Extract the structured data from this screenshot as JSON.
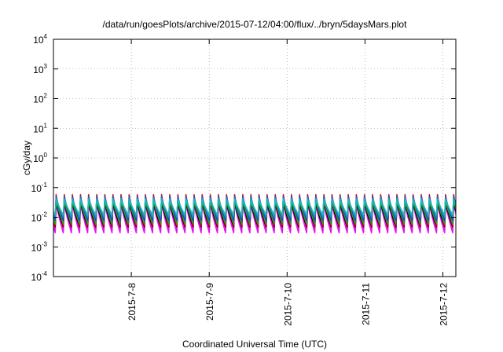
{
  "chart_data": {
    "type": "line",
    "title": "/data/run/goesPlots/archive/2015-07-12/04:00/flux/../bryn/5daysMars.plot",
    "xlabel": "Coordinated Universal Time (UTC)",
    "ylabel": "cGy/day",
    "yscale": "log",
    "ylim": [
      0.0001,
      10000
    ],
    "xlim": [
      "2015-07-07T00:00",
      "2015-07-12T04:00"
    ],
    "x_ticks": [
      {
        "date": "2015-07-08T00:00",
        "label": "2015-7-8"
      },
      {
        "date": "2015-07-09T00:00",
        "label": "2015-7-9"
      },
      {
        "date": "2015-07-10T00:00",
        "label": "2015-7-10"
      },
      {
        "date": "2015-07-11T00:00",
        "label": "2015-7-11"
      },
      {
        "date": "2015-07-12T00:00",
        "label": "2015-7-12"
      }
    ],
    "y_ticks": [
      {
        "base": "10",
        "exp": "-4",
        "value": 0.0001
      },
      {
        "base": "10",
        "exp": "-3",
        "value": 0.001
      },
      {
        "base": "10",
        "exp": "-2",
        "value": 0.01
      },
      {
        "base": "10",
        "exp": "-1",
        "value": 0.1
      },
      {
        "base": "10",
        "exp": "0",
        "value": 1
      },
      {
        "base": "10",
        "exp": "1",
        "value": 10
      },
      {
        "base": "10",
        "exp": "2",
        "value": 100
      },
      {
        "base": "10",
        "exp": "3",
        "value": 1000
      },
      {
        "base": "10",
        "exp": "4",
        "value": 10000
      }
    ],
    "grid": true,
    "legend": "none",
    "pattern": {
      "period_hours": 2.5,
      "first_peak": "2015-07-07T00:50"
    },
    "series": [
      {
        "color": "#e01818",
        "peak": 0.058,
        "trough": 0.0052
      },
      {
        "color": "#ff00ff",
        "peak": 0.03,
        "trough": 0.003
      },
      {
        "color": "#d020d0",
        "peak": 0.034,
        "trough": 0.0036
      },
      {
        "color": "#2040e0",
        "peak": 0.05,
        "trough": 0.008
      },
      {
        "color": "#1890c0",
        "peak": 0.045,
        "trough": 0.01
      },
      {
        "color": "#20b8b8",
        "peak": 0.04,
        "trough": 0.012
      },
      {
        "color": "#20a020",
        "peak": 0.036,
        "trough": 0.0062
      },
      {
        "color": "#000000",
        "peak": 0.032,
        "trough": 0.0048
      }
    ]
  }
}
